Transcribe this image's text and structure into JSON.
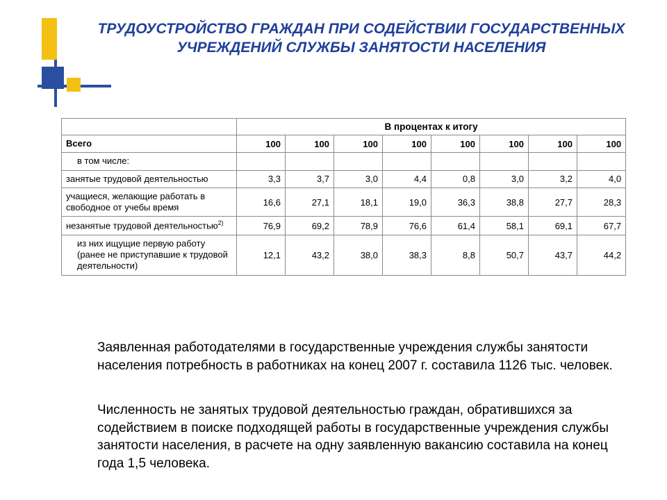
{
  "title": "ТРУДОУСТРОЙСТВО ГРАЖДАН ПРИ СОДЕЙСТВИИ ГОСУДАРСТВЕННЫХ УЧРЕЖДЕНИЙ СЛУЖБЫ ЗАНЯТОСТИ НАСЕЛЕНИЯ",
  "table": {
    "spanner": "В процентах к итогу",
    "rows": [
      {
        "label": "Всего",
        "bold": true,
        "indent": false,
        "vals": [
          "100",
          "100",
          "100",
          "100",
          "100",
          "100",
          "100",
          "100"
        ],
        "boldNums": true
      },
      {
        "label": "в том числе:",
        "bold": false,
        "indent": true,
        "vals": [
          "",
          "",
          "",
          "",
          "",
          "",
          "",
          ""
        ],
        "boldNums": false
      },
      {
        "label": "занятые трудовой деятельностью",
        "bold": false,
        "indent": false,
        "vals": [
          "3,3",
          "3,7",
          "3,0",
          "4,4",
          "0,8",
          "3,0",
          "3,2",
          "4,0"
        ],
        "boldNums": false
      },
      {
        "label": "учащиеся, желающие работать в свободное от учебы время",
        "bold": false,
        "indent": false,
        "vals": [
          "16,6",
          "27,1",
          "18,1",
          "19,0",
          "36,3",
          "38,8",
          "27,7",
          "28,3"
        ],
        "boldNums": false
      },
      {
        "label_html": "незанятые трудовой деятельностью<span class=\"sup\">2)</span>",
        "bold": false,
        "indent": false,
        "vals": [
          "76,9",
          "69,2",
          "78,9",
          "76,6",
          "61,4",
          "58,1",
          "69,1",
          "67,7"
        ],
        "boldNums": false
      },
      {
        "label": "из них ищущие первую работу (ранее не приступавшие к трудовой деятельности)",
        "bold": false,
        "indent": true,
        "vals": [
          "12,1",
          "43,2",
          "38,0",
          "38,3",
          "8,8",
          "50,7",
          "43,7",
          "44,2"
        ],
        "boldNums": false
      }
    ]
  },
  "paragraphs": [
    "Заявленная работодателями в государственные учреждения службы занятости населения потребность в работниках на конец 2007 г. составила 1126 тыс. человек.",
    "Численность не занятых трудовой деятельностью граждан, обратившихся за содействием в поиске подходящей работы в государственные учреждения службы занятости населения, в расчете на одну заявленную вакансию составила на конец года 1,5 человека."
  ],
  "style": {
    "title_color": "#1f3f9a",
    "accent_yellow": "#f3c014",
    "accent_blue": "#2a4fa0",
    "border_color": "#8a8a8a",
    "background": "#ffffff"
  }
}
